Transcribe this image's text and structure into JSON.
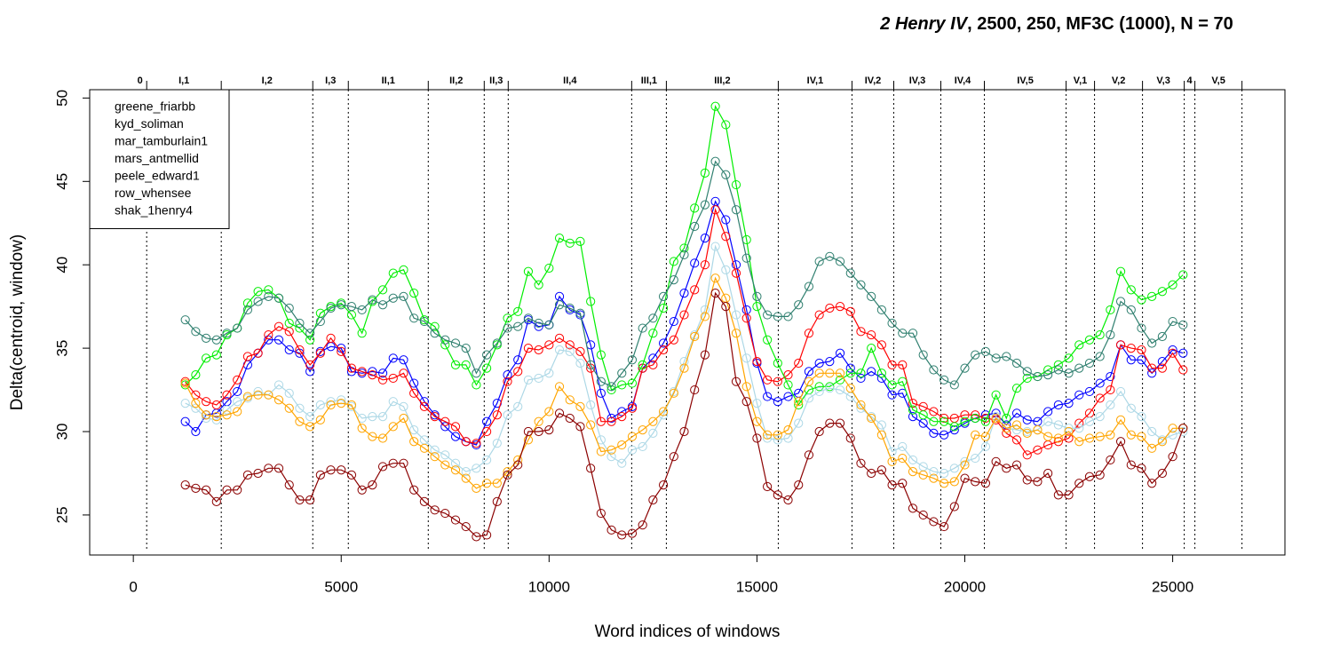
{
  "chart_data": {
    "type": "line",
    "title_italic": "2 Henry IV",
    "title_rest": ", 2500, 250, MF3C (1000), N = 70",
    "xlabel": "Word indices of windows",
    "ylabel": "Delta(centroid, window)",
    "xlim": [
      -1050,
      27700
    ],
    "ylim": [
      22.6,
      50.5
    ],
    "xticks": [
      0,
      5000,
      10000,
      15000,
      20000,
      25000
    ],
    "yticks": [
      25,
      30,
      35,
      40,
      45,
      50
    ],
    "legend": "top-left",
    "marker": "open-circle",
    "scenes": [
      {
        "label": "0",
        "start": 0,
        "end": 321
      },
      {
        "label": "I,1",
        "start": 321,
        "end": 2115
      },
      {
        "label": "I,2",
        "start": 2115,
        "end": 4316
      },
      {
        "label": "I,3",
        "start": 4316,
        "end": 5171
      },
      {
        "label": "II,1",
        "start": 5171,
        "end": 7094
      },
      {
        "label": "II,2",
        "start": 7094,
        "end": 8440
      },
      {
        "label": "II,3",
        "start": 8440,
        "end": 9017
      },
      {
        "label": "II,4",
        "start": 9017,
        "end": 11987
      },
      {
        "label": "III,1",
        "start": 11987,
        "end": 12821
      },
      {
        "label": "III,2",
        "start": 12821,
        "end": 15513
      },
      {
        "label": "IV,1",
        "start": 15513,
        "end": 17286
      },
      {
        "label": "IV,2",
        "start": 17286,
        "end": 18291
      },
      {
        "label": "IV,3",
        "start": 18291,
        "end": 19423
      },
      {
        "label": "IV,4",
        "start": 19423,
        "end": 20470
      },
      {
        "label": "IV,5",
        "start": 20470,
        "end": 22436
      },
      {
        "label": "V,1",
        "start": 22436,
        "end": 23120
      },
      {
        "label": "V,2",
        "start": 23120,
        "end": 24274
      },
      {
        "label": "V,3",
        "start": 24274,
        "end": 25278
      },
      {
        "label": "4",
        "start": 25278,
        "end": 25534
      },
      {
        "label": "V,5",
        "start": 25534,
        "end": 26667
      }
    ],
    "x": [
      1250,
      1500,
      1750,
      2000,
      2250,
      2500,
      2750,
      3000,
      3250,
      3500,
      3750,
      4000,
      4250,
      4500,
      4750,
      5000,
      5250,
      5500,
      5750,
      6000,
      6250,
      6500,
      6750,
      7000,
      7250,
      7500,
      7750,
      8000,
      8250,
      8500,
      8750,
      9000,
      9250,
      9500,
      9750,
      10000,
      10250,
      10500,
      10750,
      11000,
      11250,
      11500,
      11750,
      12000,
      12250,
      12500,
      12750,
      13000,
      13250,
      13500,
      13750,
      14000,
      14250,
      14500,
      14750,
      15000,
      15250,
      15500,
      15750,
      16000,
      16250,
      16500,
      16750,
      17000,
      17250,
      17500,
      17750,
      18000,
      18250,
      18500,
      18750,
      19000,
      19250,
      19500,
      19750,
      20000,
      20250,
      20500,
      20750,
      21000,
      21250,
      21500,
      21750,
      22000,
      22250,
      22500,
      22750,
      23000,
      23250,
      23500,
      23750,
      24000,
      24250,
      24500,
      24750,
      25000,
      25250
    ],
    "series": [
      {
        "name": "greene_friarbb",
        "color": "#0000ff",
        "values": [
          30.6,
          30.0,
          31.0,
          31.1,
          31.8,
          32.4,
          34.0,
          34.7,
          35.5,
          35.5,
          34.9,
          34.7,
          33.6,
          34.8,
          35.1,
          35.0,
          33.6,
          33.5,
          33.6,
          33.5,
          34.4,
          34.3,
          32.9,
          31.8,
          31.0,
          30.3,
          29.7,
          29.4,
          29.2,
          30.6,
          31.7,
          33.4,
          34.3,
          36.7,
          36.3,
          36.4,
          38.1,
          37.3,
          37.0,
          35.2,
          32.3,
          30.8,
          31.2,
          31.5,
          33.8,
          34.4,
          35.3,
          36.6,
          38.3,
          40.1,
          41.6,
          43.8,
          42.7,
          40.0,
          37.3,
          34.1,
          32.1,
          31.8,
          32.1,
          32.3,
          33.6,
          34.1,
          34.2,
          34.7,
          33.8,
          33.2,
          33.6,
          33.2,
          32.2,
          32.3,
          30.9,
          30.5,
          29.9,
          29.8,
          30.1,
          30.5,
          30.8,
          31.0,
          31.1,
          30.4,
          31.1,
          30.7,
          30.6,
          31.2,
          31.6,
          31.7,
          32.2,
          32.4,
          32.9,
          33.3,
          35.2,
          34.3,
          34.3,
          33.5,
          34.2,
          34.9,
          34.7
        ]
      },
      {
        "name": "kyd_soliman",
        "color": "#ff0000",
        "values": [
          33.0,
          32.2,
          31.8,
          31.6,
          32.2,
          33.1,
          34.5,
          34.7,
          35.8,
          36.3,
          36.0,
          34.9,
          34.0,
          34.7,
          35.6,
          34.8,
          33.8,
          33.6,
          33.4,
          33.1,
          33.2,
          33.5,
          32.3,
          31.5,
          30.9,
          30.6,
          30.3,
          29.4,
          29.3,
          30.0,
          31.0,
          33.0,
          33.6,
          35.0,
          34.9,
          35.2,
          35.6,
          35.2,
          34.8,
          33.8,
          30.6,
          30.6,
          30.9,
          31.4,
          33.8,
          34.0,
          34.9,
          35.5,
          37.0,
          38.5,
          40.0,
          43.3,
          41.7,
          39.5,
          36.8,
          34.2,
          33.1,
          33.0,
          33.4,
          34.1,
          35.9,
          37.0,
          37.4,
          37.5,
          37.2,
          36.0,
          35.8,
          35.2,
          34.0,
          34.0,
          31.7,
          31.5,
          31.2,
          30.8,
          30.8,
          31.0,
          31.0,
          30.8,
          30.7,
          29.9,
          29.5,
          28.6,
          28.9,
          29.2,
          29.4,
          29.6,
          30.5,
          31.1,
          32.0,
          32.5,
          35.2,
          35.0,
          34.9,
          33.8,
          33.8,
          34.7,
          33.7
        ]
      },
      {
        "name": "mar_tamburlain1",
        "color": "#00ee00",
        "values": [
          32.8,
          33.4,
          34.4,
          34.6,
          35.8,
          36.2,
          37.7,
          38.4,
          38.5,
          38.0,
          36.5,
          36.2,
          35.5,
          37.1,
          37.5,
          37.7,
          37.0,
          35.9,
          37.8,
          38.5,
          39.5,
          39.7,
          38.3,
          36.7,
          36.3,
          35.2,
          34.0,
          34.0,
          32.8,
          33.8,
          35.2,
          36.8,
          37.2,
          39.6,
          38.8,
          39.8,
          41.6,
          41.3,
          41.4,
          37.8,
          34.6,
          32.5,
          32.8,
          32.9,
          34.0,
          35.9,
          37.4,
          40.2,
          41.0,
          43.4,
          45.5,
          49.5,
          48.4,
          44.8,
          41.5,
          37.5,
          35.5,
          34.1,
          32.8,
          31.6,
          32.5,
          32.7,
          32.7,
          33.1,
          33.5,
          33.5,
          35.0,
          33.5,
          32.8,
          33.0,
          31.3,
          31.0,
          30.6,
          30.6,
          30.3,
          30.6,
          30.8,
          30.6,
          32.2,
          30.8,
          32.6,
          33.2,
          33.3,
          33.7,
          34.0,
          34.4,
          35.2,
          35.5,
          35.8,
          37.3,
          39.6,
          38.5,
          37.9,
          38.1,
          38.4,
          38.8,
          39.4
        ]
      },
      {
        "name": "mars_antmellid",
        "color": "#2f7f6f",
        "values": [
          36.7,
          36.0,
          35.6,
          35.5,
          35.9,
          36.2,
          37.3,
          37.8,
          38.1,
          38.0,
          37.4,
          36.5,
          35.9,
          36.6,
          37.4,
          37.6,
          37.5,
          37.3,
          37.9,
          37.6,
          38.0,
          38.1,
          36.8,
          36.6,
          35.9,
          35.5,
          35.3,
          35.0,
          33.5,
          34.6,
          35.3,
          36.2,
          36.3,
          36.8,
          36.5,
          36.4,
          37.6,
          37.4,
          37.1,
          34.0,
          33.0,
          32.7,
          33.5,
          34.3,
          36.2,
          36.8,
          38.1,
          39.1,
          40.6,
          42.3,
          43.6,
          46.2,
          45.4,
          43.3,
          40.4,
          38.1,
          37.0,
          36.9,
          36.9,
          37.6,
          38.7,
          40.2,
          40.5,
          40.2,
          39.5,
          38.8,
          38.1,
          37.3,
          36.5,
          35.9,
          35.9,
          34.6,
          33.7,
          33.1,
          32.8,
          33.8,
          34.6,
          34.8,
          34.4,
          34.5,
          34.1,
          33.6,
          33.3,
          33.4,
          33.7,
          33.5,
          33.8,
          34.1,
          34.5,
          35.8,
          37.8,
          37.3,
          36.2,
          35.3,
          35.7,
          36.6,
          36.4
        ]
      },
      {
        "name": "peele_edward1",
        "color": "#add8e6",
        "values": [
          31.7,
          31.4,
          30.8,
          30.7,
          31.3,
          31.8,
          32.0,
          32.4,
          32.2,
          32.8,
          32.3,
          31.4,
          30.9,
          31.6,
          31.8,
          31.9,
          31.5,
          30.8,
          30.9,
          30.9,
          31.8,
          31.5,
          30.1,
          29.5,
          28.9,
          28.6,
          28.1,
          27.6,
          27.8,
          28.3,
          29.3,
          31.0,
          31.5,
          33.1,
          33.2,
          33.5,
          34.9,
          34.8,
          34.1,
          31.6,
          29.5,
          28.5,
          28.1,
          28.9,
          29.1,
          29.9,
          31.0,
          32.4,
          34.2,
          35.8,
          37.3,
          41.1,
          39.7,
          37.0,
          34.4,
          31.7,
          29.6,
          29.5,
          29.6,
          30.5,
          32.0,
          32.4,
          32.6,
          32.5,
          32.1,
          31.4,
          30.9,
          30.4,
          28.8,
          29.1,
          28.3,
          27.9,
          27.6,
          27.5,
          27.8,
          28.2,
          28.4,
          29.1,
          30.9,
          30.2,
          30.1,
          30.0,
          30.1,
          30.6,
          30.4,
          30.2,
          30.2,
          30.6,
          30.9,
          31.6,
          32.4,
          31.4,
          30.9,
          30.0,
          29.5,
          29.8,
          30.0
        ]
      },
      {
        "name": "row_whensee",
        "color": "#ffa500",
        "values": [
          32.9,
          31.7,
          31.0,
          30.9,
          31.0,
          31.2,
          32.1,
          32.2,
          32.2,
          31.9,
          31.4,
          30.6,
          30.3,
          30.7,
          31.6,
          31.7,
          31.6,
          30.2,
          29.7,
          29.6,
          30.3,
          30.8,
          29.4,
          29.0,
          28.5,
          28.0,
          27.7,
          27.2,
          26.6,
          26.9,
          26.9,
          27.6,
          28.3,
          29.5,
          30.6,
          31.2,
          32.7,
          31.9,
          31.5,
          30.4,
          28.8,
          28.9,
          29.2,
          29.7,
          30.1,
          30.6,
          31.2,
          32.3,
          33.8,
          35.7,
          36.9,
          39.2,
          38.0,
          35.9,
          32.7,
          30.6,
          29.8,
          29.8,
          30.1,
          31.8,
          33.0,
          33.5,
          33.5,
          33.5,
          32.6,
          31.6,
          30.8,
          29.8,
          28.2,
          28.4,
          27.6,
          27.4,
          27.2,
          26.9,
          27.0,
          28.0,
          29.8,
          29.7,
          30.8,
          30.2,
          30.4,
          29.9,
          30.1,
          29.7,
          29.6,
          30.0,
          29.4,
          29.6,
          29.7,
          29.8,
          30.7,
          29.8,
          29.7,
          29.0,
          29.4,
          30.2,
          30.2
        ]
      },
      {
        "name": "shak_1henry4",
        "color": "#8b0000",
        "values": [
          26.8,
          26.6,
          26.5,
          25.8,
          26.5,
          26.5,
          27.4,
          27.5,
          27.8,
          27.8,
          26.8,
          25.9,
          25.9,
          27.4,
          27.7,
          27.7,
          27.4,
          26.5,
          26.8,
          27.9,
          28.1,
          28.1,
          26.5,
          25.8,
          25.3,
          25.1,
          24.7,
          24.3,
          23.7,
          23.8,
          25.8,
          27.4,
          28.0,
          30.0,
          30.0,
          30.1,
          31.1,
          30.8,
          30.3,
          27.8,
          25.1,
          24.1,
          23.8,
          23.9,
          24.4,
          25.9,
          26.8,
          28.5,
          30.0,
          32.5,
          34.6,
          38.3,
          37.5,
          33.0,
          31.8,
          29.6,
          26.7,
          26.2,
          25.9,
          26.8,
          28.6,
          30.0,
          30.5,
          30.5,
          29.6,
          28.1,
          27.5,
          27.7,
          26.8,
          26.9,
          25.4,
          25.0,
          24.6,
          24.3,
          25.5,
          27.2,
          27.0,
          26.9,
          28.2,
          27.8,
          28.0,
          27.1,
          27.0,
          27.5,
          26.2,
          26.2,
          26.9,
          27.3,
          27.4,
          28.3,
          29.4,
          28.0,
          27.8,
          26.9,
          27.5,
          28.5,
          30.2
        ]
      }
    ]
  }
}
